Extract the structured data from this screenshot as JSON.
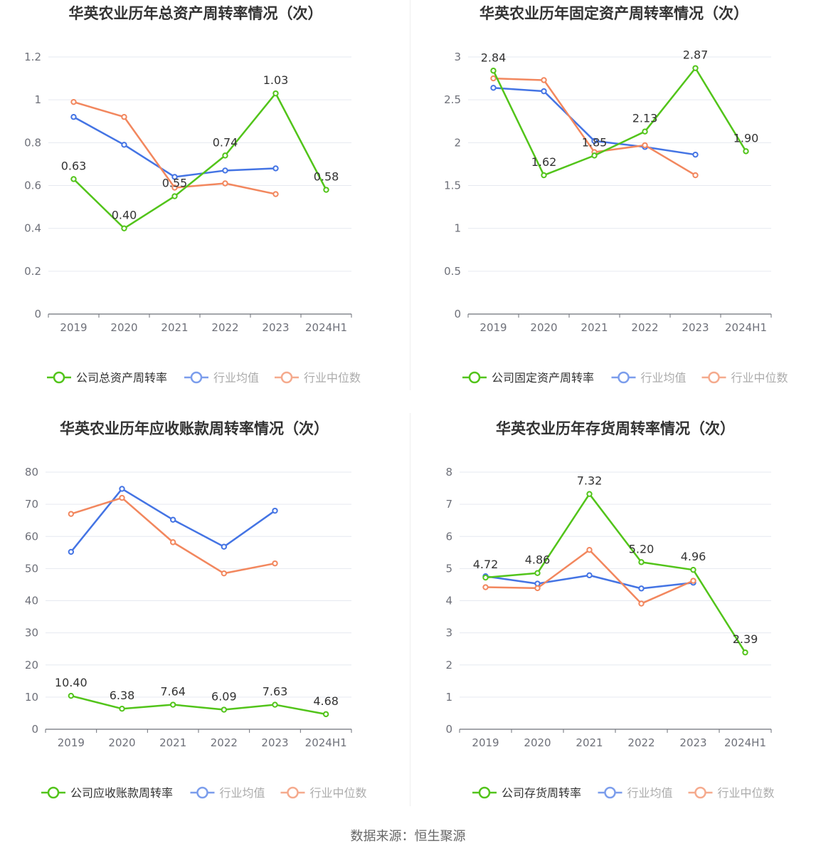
{
  "source_text": "数据来源：恒生聚源",
  "colors": {
    "company": "#52c41a",
    "average": "#4474e4",
    "median": "#f2875e"
  },
  "chart_data": [
    {
      "type": "line",
      "title": "华英农业历年总资产周转率情况（次）",
      "categories": [
        "2019",
        "2020",
        "2021",
        "2022",
        "2023",
        "2024H1"
      ],
      "ylim": [
        0,
        1.2
      ],
      "yticks": [
        "0",
        "0.2",
        "0.4",
        "0.6",
        "0.8",
        "1",
        "1.2"
      ],
      "ytick_values": [
        0,
        0.2,
        0.4,
        0.6,
        0.8,
        1,
        1.2
      ],
      "series": [
        {
          "name": "公司总资产周转率",
          "color": "#52c41a",
          "values": [
            0.63,
            0.4,
            0.55,
            0.74,
            1.03,
            0.58
          ],
          "labels": [
            "0.63",
            "0.40",
            "0.55",
            "0.74",
            "1.03",
            "0.58"
          ]
        },
        {
          "name": "行业均值",
          "color": "#4474e4",
          "values": [
            0.92,
            0.79,
            0.64,
            0.67,
            0.68,
            null
          ]
        },
        {
          "name": "行业中位数",
          "color": "#f2875e",
          "values": [
            0.99,
            0.92,
            0.59,
            0.61,
            0.56,
            null
          ]
        }
      ]
    },
    {
      "type": "line",
      "title": "华英农业历年固定资产周转率情况（次）",
      "categories": [
        "2019",
        "2020",
        "2021",
        "2022",
        "2023",
        "2024H1"
      ],
      "ylim": [
        0,
        3
      ],
      "yticks": [
        "0",
        "0.5",
        "1",
        "1.5",
        "2",
        "2.5",
        "3"
      ],
      "ytick_values": [
        0,
        0.5,
        1,
        1.5,
        2,
        2.5,
        3
      ],
      "series": [
        {
          "name": "公司固定资产周转率",
          "color": "#52c41a",
          "values": [
            2.84,
            1.62,
            1.85,
            2.13,
            2.87,
            1.9
          ],
          "labels": [
            "2.84",
            "1.62",
            "1.85",
            "2.13",
            "2.87",
            "1.90"
          ]
        },
        {
          "name": "行业均值",
          "color": "#4474e4",
          "values": [
            2.64,
            2.6,
            2.02,
            1.95,
            1.86,
            null
          ]
        },
        {
          "name": "行业中位数",
          "color": "#f2875e",
          "values": [
            2.75,
            2.73,
            1.89,
            1.97,
            1.62,
            null
          ]
        }
      ]
    },
    {
      "type": "line",
      "title": "华英农业历年应收账款周转率情况（次）",
      "categories": [
        "2019",
        "2020",
        "2021",
        "2022",
        "2023",
        "2024H1"
      ],
      "ylim": [
        0,
        80
      ],
      "yticks": [
        "0",
        "10",
        "20",
        "30",
        "40",
        "50",
        "60",
        "70",
        "80"
      ],
      "ytick_values": [
        0,
        10,
        20,
        30,
        40,
        50,
        60,
        70,
        80
      ],
      "series": [
        {
          "name": "公司应收账款周转率",
          "color": "#52c41a",
          "values": [
            10.4,
            6.38,
            7.64,
            6.09,
            7.63,
            4.68
          ],
          "labels": [
            "10.40",
            "6.38",
            "7.64",
            "6.09",
            "7.63",
            "4.68"
          ]
        },
        {
          "name": "行业均值",
          "color": "#4474e4",
          "values": [
            55.2,
            74.8,
            65.2,
            56.8,
            68.0,
            null
          ]
        },
        {
          "name": "行业中位数",
          "color": "#f2875e",
          "values": [
            67.0,
            72.0,
            58.2,
            48.5,
            51.6,
            null
          ]
        }
      ]
    },
    {
      "type": "line",
      "title": "华英农业历年存货周转率情况（次）",
      "categories": [
        "2019",
        "2020",
        "2021",
        "2022",
        "2023",
        "2024H1"
      ],
      "ylim": [
        0,
        8
      ],
      "yticks": [
        "0",
        "1",
        "2",
        "3",
        "4",
        "5",
        "6",
        "7",
        "8"
      ],
      "ytick_values": [
        0,
        1,
        2,
        3,
        4,
        5,
        6,
        7,
        8
      ],
      "series": [
        {
          "name": "公司存货周转率",
          "color": "#52c41a",
          "values": [
            4.72,
            4.86,
            7.32,
            5.2,
            4.96,
            2.39
          ],
          "labels": [
            "4.72",
            "4.86",
            "7.32",
            "5.20",
            "4.96",
            "2.39"
          ]
        },
        {
          "name": "行业均值",
          "color": "#4474e4",
          "values": [
            4.76,
            4.53,
            4.79,
            4.38,
            4.56,
            null
          ]
        },
        {
          "name": "行业中位数",
          "color": "#f2875e",
          "values": [
            4.42,
            4.39,
            5.58,
            3.91,
            4.62,
            null
          ]
        }
      ]
    }
  ]
}
